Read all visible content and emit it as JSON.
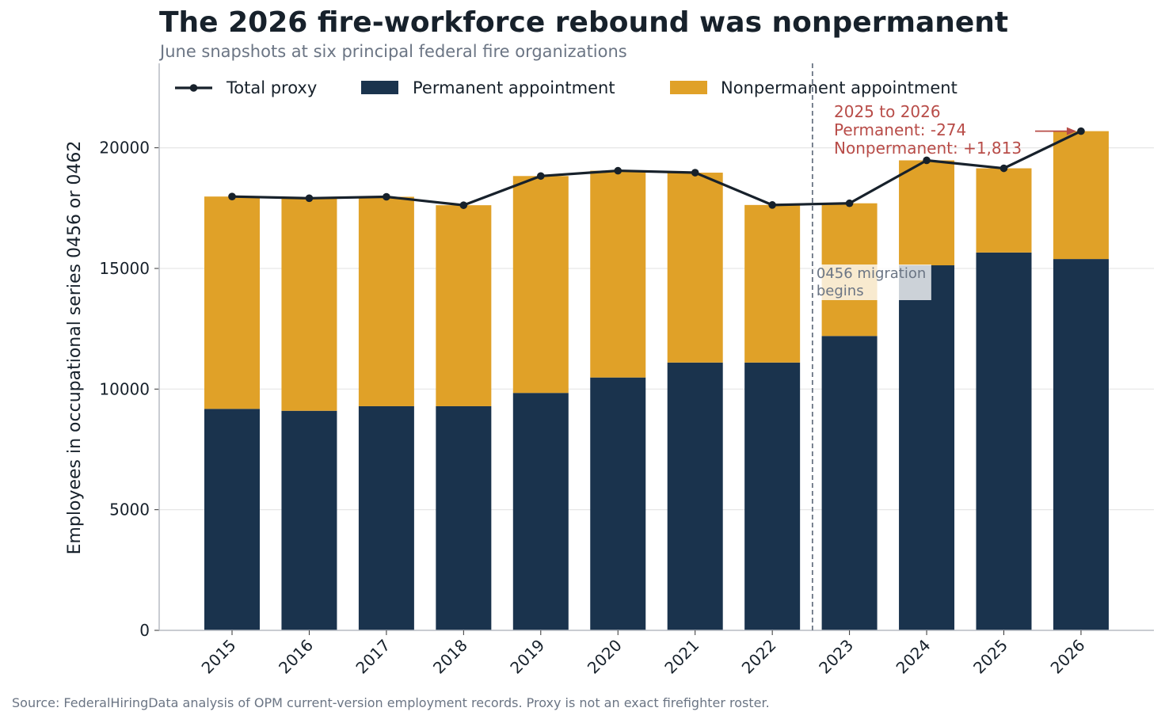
{
  "header": {
    "title": "The 2026 fire-workforce rebound was nonpermanent",
    "subtitle": "June snapshots at six principal federal fire organizations"
  },
  "footer": {
    "source": "Source: FederalHiringData analysis of OPM current-version employment records. Proxy is not an exact firefighter roster."
  },
  "colors": {
    "permanent": "#1a334d",
    "nonpermanent": "#e0a128",
    "total": "#17212b",
    "annotation": "#b84c48",
    "marker_line": "#6b7584",
    "grid": "#e6e6e6"
  },
  "chart_data": {
    "type": "bar",
    "stacked": true,
    "ylabel": "Employees in occupational series 0456 or 0462",
    "ylim": [
      0,
      23500
    ],
    "yticks": [
      0,
      5000,
      10000,
      15000,
      20000
    ],
    "grid": "horizontal",
    "legend_position": "top",
    "categories": [
      "2015",
      "2016",
      "2017",
      "2018",
      "2019",
      "2020",
      "2021",
      "2022",
      "2023",
      "2024",
      "2025",
      "2026"
    ],
    "series": [
      {
        "name": "Permanent appointment",
        "kind": "bar",
        "values": [
          9180,
          9100,
          9290,
          9290,
          9840,
          10480,
          11100,
          11100,
          12200,
          15130,
          15660,
          15390
        ]
      },
      {
        "name": "Nonpermanent appointment",
        "kind": "bar",
        "values": [
          8800,
          8810,
          8680,
          8330,
          8990,
          8570,
          7870,
          6530,
          5500,
          4350,
          3490,
          5300
        ]
      },
      {
        "name": "Total proxy",
        "kind": "line",
        "values": [
          17980,
          17910,
          17970,
          17620,
          18830,
          19050,
          18970,
          17630,
          17700,
          19480,
          19150,
          20690
        ]
      }
    ],
    "annotations": {
      "vline": {
        "between": [
          "2022",
          "2023"
        ],
        "text_lines": [
          "0456 migration",
          "begins"
        ]
      },
      "change": {
        "target": "2026",
        "lines": [
          "2025 to 2026",
          "Permanent: -274",
          "Nonpermanent: +1,813"
        ]
      }
    }
  }
}
